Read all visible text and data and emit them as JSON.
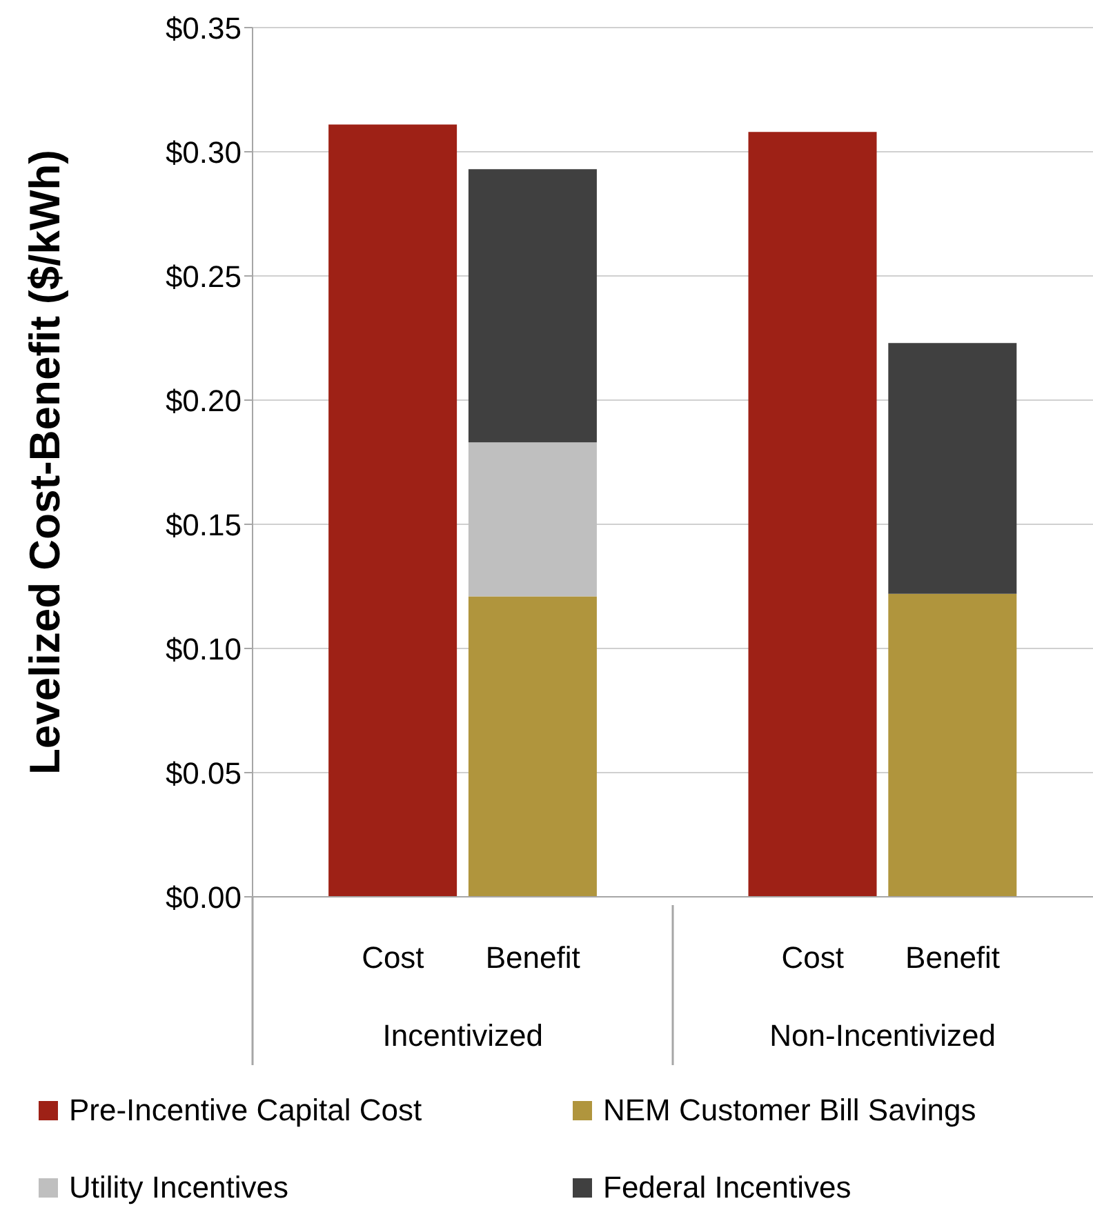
{
  "chart_data": {
    "type": "bar",
    "stacked": true,
    "ylabel": "Levelized Cost-Benefit ($/kWh)",
    "categories": [
      "Cost",
      "Benefit",
      null,
      "Cost",
      "Benefit"
    ],
    "annotations": [
      "Incentivized",
      "Non-Incentivized"
    ],
    "series": [
      {
        "name": "Pre-Incentive Capital Cost",
        "color": "#9e2116",
        "values": [
          0.311,
          null,
          null,
          0.308,
          null
        ]
      },
      {
        "name": "NEM Customer Bill Savings",
        "color": "#b0953d",
        "values": [
          null,
          0.121,
          null,
          null,
          0.122
        ]
      },
      {
        "name": "Utility Incentives",
        "color": "#bfbfbf",
        "values": [
          null,
          0.062,
          null,
          null,
          null
        ]
      },
      {
        "name": "Federal Incentives",
        "color": "#404040",
        "values": [
          null,
          0.11,
          null,
          null,
          0.101
        ]
      }
    ],
    "ylim": [
      0,
      0.35
    ],
    "yticks": [
      {
        "value": 0,
        "label": "$0.00"
      },
      {
        "value": 0.05,
        "label": "$0.05"
      },
      {
        "value": 0.1,
        "label": "$0.10"
      },
      {
        "value": 0.15,
        "label": "$0.15"
      },
      {
        "value": 0.2,
        "label": "$0.20"
      },
      {
        "value": 0.25,
        "label": "$0.25"
      },
      {
        "value": 0.3,
        "label": "$0.30"
      },
      {
        "value": 0.35,
        "label": "$0.35"
      }
    ],
    "grid": "y",
    "legend": "bottom"
  }
}
